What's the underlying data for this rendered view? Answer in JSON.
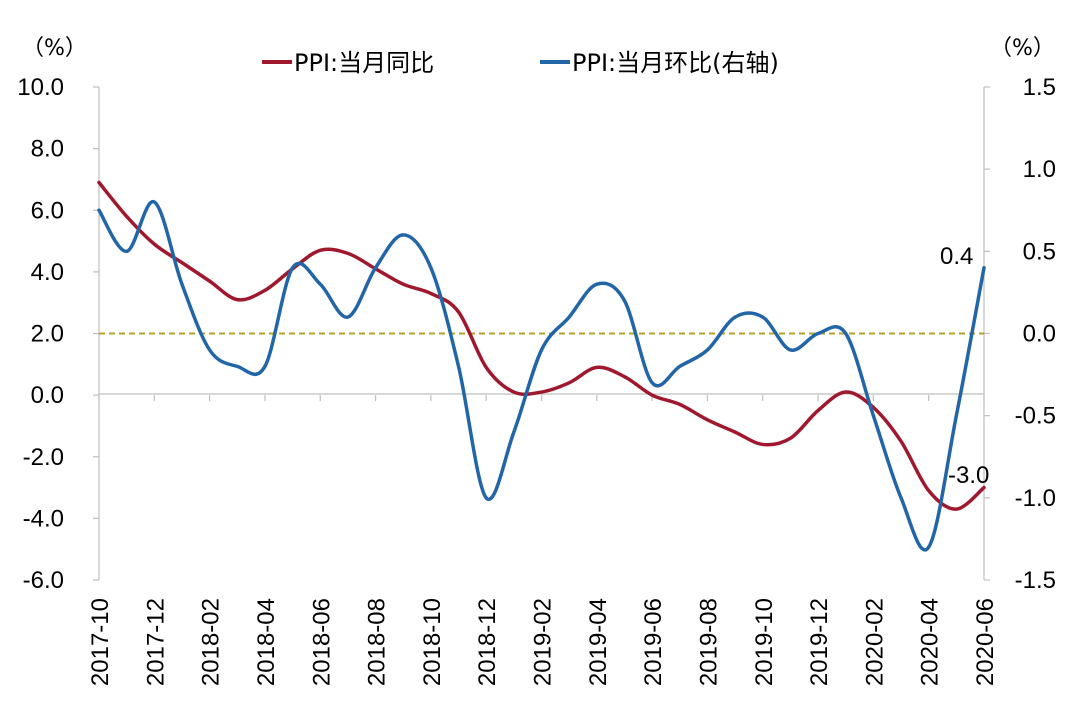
{
  "chart_data": {
    "type": "line",
    "title": "",
    "left_axis": {
      "unit": "（%）",
      "ylim": [
        -6,
        10
      ],
      "ticks": [
        "10.0",
        "8.0",
        "6.0",
        "4.0",
        "2.0",
        "0.0",
        "-2.0",
        "-4.0",
        "-6.0"
      ]
    },
    "right_axis": {
      "unit": "（%）",
      "ylim": [
        -1.5,
        1.5
      ],
      "ticks": [
        "1.5",
        "1.0",
        "0.5",
        "0.0",
        "-0.5",
        "-1.0",
        "-1.5"
      ]
    },
    "x_labels": [
      "2017-10",
      "2017-12",
      "2018-02",
      "2018-04",
      "2018-06",
      "2018-08",
      "2018-10",
      "2018-12",
      "2019-02",
      "2019-04",
      "2019-06",
      "2019-08",
      "2019-10",
      "2019-12",
      "2020-02",
      "2020-04",
      "2020-06"
    ],
    "x": [
      "2017-10",
      "2017-11",
      "2017-12",
      "2018-01",
      "2018-02",
      "2018-03",
      "2018-04",
      "2018-05",
      "2018-06",
      "2018-07",
      "2018-08",
      "2018-09",
      "2018-10",
      "2018-11",
      "2018-12",
      "2019-01",
      "2019-02",
      "2019-03",
      "2019-04",
      "2019-05",
      "2019-06",
      "2019-07",
      "2019-08",
      "2019-09",
      "2019-10",
      "2019-11",
      "2019-12",
      "2020-01",
      "2020-02",
      "2020-03",
      "2020-04",
      "2020-05",
      "2020-06"
    ],
    "series": [
      {
        "name": "PPI:当月同比",
        "axis": "left",
        "color": "#a0182e",
        "values": [
          6.9,
          5.8,
          4.9,
          4.3,
          3.7,
          3.1,
          3.4,
          4.1,
          4.7,
          4.6,
          4.1,
          3.6,
          3.3,
          2.7,
          0.9,
          0.1,
          0.1,
          0.4,
          0.9,
          0.6,
          0.0,
          -0.3,
          -0.8,
          -1.2,
          -1.6,
          -1.4,
          -0.5,
          0.1,
          -0.4,
          -1.5,
          -3.1,
          -3.7,
          -3.0
        ]
      },
      {
        "name": "PPI:当月环比(右轴)",
        "axis": "right",
        "color": "#2366a8",
        "values": [
          0.75,
          0.5,
          0.8,
          0.3,
          -0.1,
          -0.2,
          -0.2,
          0.4,
          0.3,
          0.1,
          0.4,
          0.6,
          0.4,
          -0.2,
          -1.0,
          -0.6,
          -0.1,
          0.1,
          0.3,
          0.2,
          -0.3,
          -0.2,
          -0.1,
          0.1,
          0.1,
          -0.1,
          0.0,
          0.0,
          -0.5,
          -1.0,
          -1.3,
          -0.5,
          0.4
        ]
      }
    ],
    "reference_line": {
      "axis": "right",
      "value": 0.0,
      "color": "#b5a22a"
    },
    "annotations": [
      {
        "series": 1,
        "index": 32,
        "text": "0.4"
      },
      {
        "series": 0,
        "index": 32,
        "text": "-3.0"
      }
    ],
    "legend": {
      "position": "top",
      "entries": [
        "PPI:当月同比",
        "PPI:当月环比(右轴)"
      ]
    },
    "grid": false
  }
}
